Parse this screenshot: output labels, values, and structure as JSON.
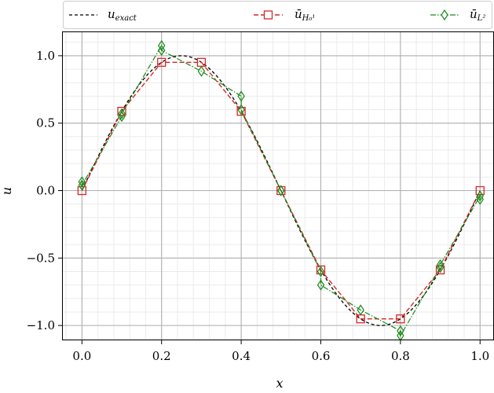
{
  "chart_data": {
    "type": "line",
    "xlabel": "x",
    "ylabel": "u",
    "xlim": [
      -0.05,
      1.035
    ],
    "ylim": [
      -1.11,
      1.18
    ],
    "xticks": [
      0.0,
      0.2,
      0.4,
      0.6,
      0.8,
      1.0
    ],
    "xtick_labels": [
      "0.0",
      "0.2",
      "0.4",
      "0.6",
      "0.8",
      "1.0"
    ],
    "yticks": [
      -1.0,
      -0.5,
      0.0,
      0.5,
      1.0
    ],
    "ytick_labels": [
      "−1.0",
      "−0.5",
      "0.0",
      "0.5",
      "1.0"
    ],
    "grid": true,
    "minor_grid": true,
    "legend_placement": "top",
    "series": [
      {
        "name": "u_exact",
        "legend_main": "u",
        "legend_sub": "exact",
        "style": "dashed",
        "color": "#000000",
        "function": "sin(2πx)",
        "x_range": [
          0,
          1
        ]
      },
      {
        "name": "ū_{H_0^1}",
        "legend_main": "ū",
        "legend_sub": "H₀¹",
        "style": "dashed",
        "marker": "square",
        "color": "#d62728",
        "x": [
          0.0,
          0.1,
          0.2,
          0.3,
          0.4,
          0.5,
          0.6,
          0.7,
          0.8,
          0.9,
          1.0
        ],
        "values": [
          0.0,
          0.588,
          0.951,
          0.951,
          0.588,
          0.0,
          -0.588,
          -0.951,
          -0.951,
          -0.588,
          0.0
        ]
      },
      {
        "name": "ū_{L^2}",
        "legend_main": "ū",
        "legend_sub": "L²",
        "style": "dashdot",
        "marker": "diamond",
        "color": "#1a8a1a",
        "points": [
          [
            0.0,
            0.065
          ],
          [
            0.0,
            0.04
          ],
          [
            0.1,
            0.55
          ],
          [
            0.1,
            0.57
          ],
          [
            0.2,
            1.075
          ],
          [
            0.2,
            1.04
          ],
          [
            0.3,
            0.885
          ],
          [
            0.4,
            0.7
          ],
          [
            0.4,
            0.6
          ],
          [
            0.5,
            0.0
          ],
          [
            0.5,
            0.0
          ],
          [
            0.6,
            -0.6
          ],
          [
            0.6,
            -0.7
          ],
          [
            0.7,
            -0.885
          ],
          [
            0.8,
            -1.04
          ],
          [
            0.8,
            -1.075
          ],
          [
            0.9,
            -0.57
          ],
          [
            0.9,
            -0.55
          ],
          [
            1.0,
            -0.04
          ],
          [
            1.0,
            -0.065
          ]
        ]
      }
    ]
  }
}
